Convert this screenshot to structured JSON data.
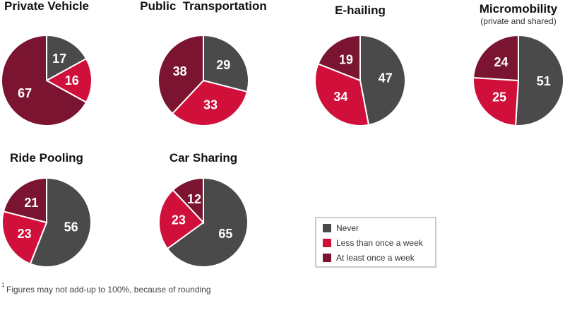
{
  "colors": {
    "never": "#4a4a4a",
    "less_than_weekly": "#d0103a",
    "at_least_weekly": "#7a1431"
  },
  "legend": {
    "items": [
      {
        "key": "never",
        "label": "Never"
      },
      {
        "key": "less_than_weekly",
        "label": "Less than once a week"
      },
      {
        "key": "at_least_weekly",
        "label": "At least once a week"
      }
    ]
  },
  "footnote": {
    "marker": "1",
    "text": "Figures may not add-up to 100%, because of rounding"
  },
  "chart_data": [
    {
      "type": "pie",
      "title": "Private Vehicle",
      "slices": [
        {
          "key": "never",
          "label": "Never",
          "value": 17
        },
        {
          "key": "less_than_weekly",
          "label": "Less than once a week",
          "value": 16
        },
        {
          "key": "at_least_weekly",
          "label": "At least once a week",
          "value": 67
        }
      ]
    },
    {
      "type": "pie",
      "title": "Public  Transportation",
      "slices": [
        {
          "key": "never",
          "label": "Never",
          "value": 29
        },
        {
          "key": "less_than_weekly",
          "label": "Less than once a week",
          "value": 33
        },
        {
          "key": "at_least_weekly",
          "label": "At least once a week",
          "value": 38
        }
      ]
    },
    {
      "type": "pie",
      "title": "E-hailing",
      "slices": [
        {
          "key": "never",
          "label": "Never",
          "value": 47
        },
        {
          "key": "less_than_weekly",
          "label": "Less than once a week",
          "value": 34
        },
        {
          "key": "at_least_weekly",
          "label": "At least once a week",
          "value": 19
        }
      ]
    },
    {
      "type": "pie",
      "title": "Micromobility",
      "subtitle": "(private and shared)",
      "slices": [
        {
          "key": "never",
          "label": "Never",
          "value": 51
        },
        {
          "key": "less_than_weekly",
          "label": "Less than once a week",
          "value": 25
        },
        {
          "key": "at_least_weekly",
          "label": "At least once a week",
          "value": 24
        }
      ]
    },
    {
      "type": "pie",
      "title": "Ride Pooling",
      "slices": [
        {
          "key": "never",
          "label": "Never",
          "value": 56
        },
        {
          "key": "less_than_weekly",
          "label": "Less than once a week",
          "value": 23
        },
        {
          "key": "at_least_weekly",
          "label": "At least once a week",
          "value": 21
        }
      ]
    },
    {
      "type": "pie",
      "title": "Car Sharing",
      "slices": [
        {
          "key": "never",
          "label": "Never",
          "value": 65
        },
        {
          "key": "less_than_weekly",
          "label": "Less than once a week",
          "value": 23
        },
        {
          "key": "at_least_weekly",
          "label": "At least once a week",
          "value": 12
        }
      ]
    }
  ]
}
